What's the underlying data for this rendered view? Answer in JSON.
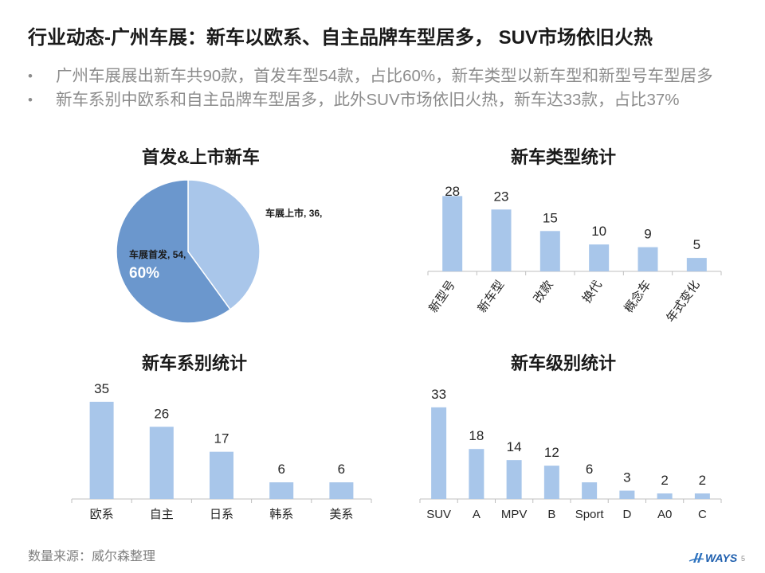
{
  "slide": {
    "title": "行业动态-广州车展：新车以欧系、自主品牌车型居多， SUV市场依旧火热",
    "bullets": [
      "广州车展展出新车共90款，首发车型54款，占比60%，新车类型以新车型和新型号车型居多",
      "新车系别中欧系和自主品牌车型居多，此外SUV市场依旧火热，新车达33款，占比37%"
    ],
    "bullet_marker": "•",
    "source": "数量来源：威尔森整理",
    "logo_text": "WAYS",
    "page_number": "5"
  },
  "colors": {
    "bar": "#a8c6ea",
    "axis": "#bfbfbf",
    "logo": "#2f74c0"
  },
  "chart_data": [
    {
      "type": "pie",
      "title": "首发&上市新车",
      "slices": [
        {
          "name": "车展上市",
          "value": 36,
          "color": "#a9c6ea"
        },
        {
          "name": "车展首发",
          "value": 54,
          "percent": "60%",
          "color": "#6b97cd"
        }
      ]
    },
    {
      "type": "bar",
      "title": "新车类型统计",
      "categories": [
        "新型号",
        "新车型",
        "改款",
        "换代",
        "概念车",
        "年式变化"
      ],
      "values": [
        28,
        23,
        15,
        10,
        9,
        5
      ]
    },
    {
      "type": "bar",
      "title": "新车系别统计",
      "categories": [
        "欧系",
        "自主",
        "日系",
        "韩系",
        "美系"
      ],
      "values": [
        35,
        26,
        17,
        6,
        6
      ]
    },
    {
      "type": "bar",
      "title": "新车级别统计",
      "categories": [
        "SUV",
        "A",
        "MPV",
        "B",
        "Sport",
        "D",
        "A0",
        "C"
      ],
      "values": [
        33,
        18,
        14,
        12,
        6,
        3,
        2,
        2
      ]
    }
  ]
}
